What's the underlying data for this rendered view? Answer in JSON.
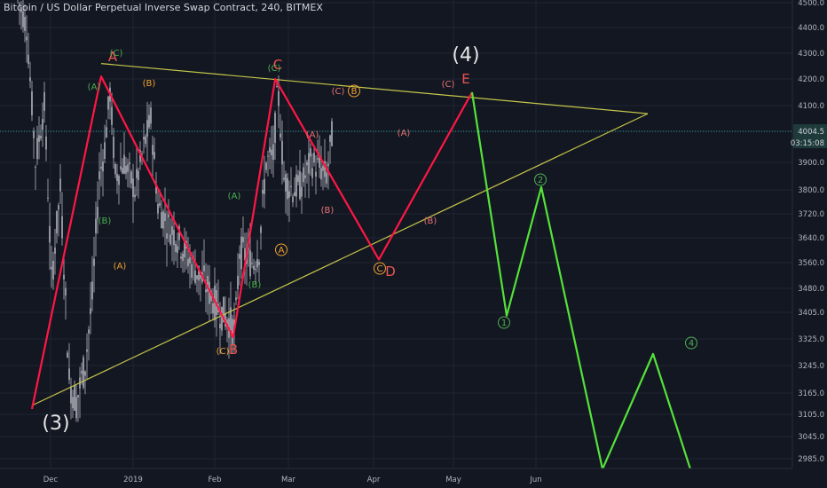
{
  "header": {
    "title": "Bitcoin / US Dollar Perpetual Inverse Swap Contract, 240, BITMEX"
  },
  "chart_data": {
    "type": "candlestick",
    "title": "Bitcoin / US Dollar Perpetual Inverse Swap Contract, 240, BITMEX",
    "y_ticks": [
      "4500.0",
      "4400.0",
      "4300.0",
      "4200.0",
      "4100.0",
      "4004.5",
      "3900.0",
      "3800.0",
      "3720.0",
      "3640.0",
      "3560.0",
      "3480.0",
      "3405.0",
      "3325.0",
      "3245.0",
      "3165.0",
      "3105.0",
      "3045.0",
      "2985.0"
    ],
    "x_ticks": [
      "Dec",
      "2019",
      "Feb",
      "Mar",
      "Apr",
      "May",
      "Jun"
    ],
    "current_price": "4004.5",
    "countdown": "03:15:08",
    "colors": {
      "background": "#131722",
      "price_line": "#26a69a",
      "wave_red": "#ff1744",
      "wave_green": "#55e23a",
      "triangle": "#c6c64a",
      "candles": "#d1d4dc",
      "label_green": "#4caf50",
      "label_orange": "#f0a030",
      "label_red": "#ef5350",
      "label_pink": "#e57373",
      "axis_text": "#b2b5be",
      "price_tag_bg": "#1e3a3a"
    },
    "wave_labels": [
      {
        "text": "(3)",
        "color": "white",
        "size": "large"
      },
      {
        "text": "(4)",
        "color": "white",
        "size": "large"
      },
      {
        "text": "A",
        "color": "red"
      },
      {
        "text": "B",
        "color": "red"
      },
      {
        "text": "C",
        "color": "red"
      },
      {
        "text": "D",
        "color": "red"
      },
      {
        "text": "E",
        "color": "red"
      },
      {
        "text": "(C)",
        "color": "green"
      },
      {
        "text": "(A)",
        "color": "green"
      },
      {
        "text": "(B)",
        "color": "green"
      },
      {
        "text": "(B)",
        "color": "orange"
      },
      {
        "text": "(A)",
        "color": "orange"
      },
      {
        "text": "(C)",
        "color": "orange"
      },
      {
        "text": "(A)",
        "color": "green"
      },
      {
        "text": "(B)",
        "color": "green"
      },
      {
        "text": "(C)",
        "color": "green"
      },
      {
        "text": "A",
        "color": "orange",
        "circled": true
      },
      {
        "text": "(C)",
        "color": "pink"
      },
      {
        "text": "B",
        "color": "orange",
        "circled": true
      },
      {
        "text": "(A)",
        "color": "pink"
      },
      {
        "text": "(B)",
        "color": "pink"
      },
      {
        "text": "C",
        "color": "orange",
        "circled": true
      },
      {
        "text": "(A)",
        "color": "pink"
      },
      {
        "text": "(B)",
        "color": "pink"
      },
      {
        "text": "(C)",
        "color": "pink"
      },
      {
        "text": "1",
        "color": "green",
        "circled": true
      },
      {
        "text": "2",
        "color": "green",
        "circled": true
      },
      {
        "text": "4",
        "color": "green",
        "circled": true
      }
    ],
    "red_wave": [
      {
        "t": "2018-11-24",
        "price": 3120
      },
      {
        "t": "2018-12-20",
        "price": 4210
      },
      {
        "t": "2019-02-08",
        "price": 3330
      },
      {
        "t": "2019-02-24",
        "price": 4200
      },
      {
        "t": "2019-04-03",
        "price": 3570
      },
      {
        "t": "2019-05-08",
        "price": 4150
      }
    ],
    "green_projection": [
      {
        "t": "2019-05-08",
        "price": 4150
      },
      {
        "t": "2019-05-21",
        "price": 3395
      },
      {
        "t": "2019-06-03",
        "price": 3810
      },
      {
        "t": "2019-06-26",
        "price": 2960
      },
      {
        "t": "2019-07-15",
        "price": 3280
      },
      {
        "t": "2019-07-29",
        "price": 2960
      }
    ],
    "triangle_upper": [
      {
        "t": "2018-12-20",
        "price": 4260
      },
      {
        "t": "2019-07-13",
        "price": 4070
      }
    ],
    "triangle_lower": [
      {
        "t": "2018-11-24",
        "price": 3130
      },
      {
        "t": "2019-07-13",
        "price": 4070
      }
    ]
  }
}
